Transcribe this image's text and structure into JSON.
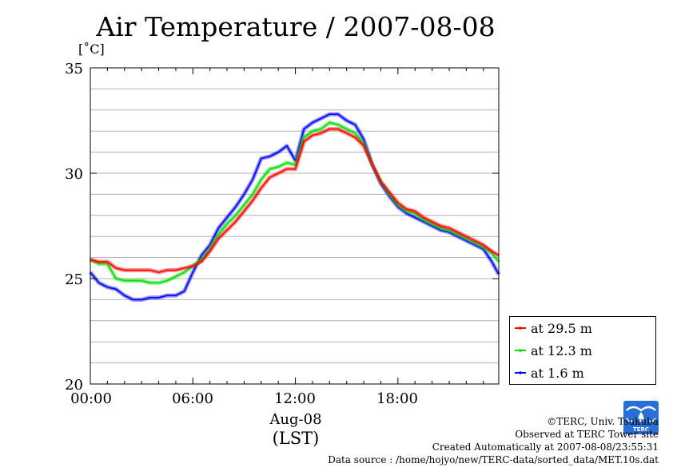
{
  "chart_data": {
    "type": "line",
    "title": "Air Temperature / 2007-08-08",
    "ylabel": "[˚C]",
    "xlabel": "(LST)",
    "x_date_label": "Aug-08",
    "x_tick_labels": [
      "00:00",
      "06:00",
      "12:00",
      "18:00"
    ],
    "x_tick_hours": [
      0,
      6,
      12,
      18
    ],
    "xlim_hours": [
      0,
      23.9
    ],
    "ylim": [
      20,
      35
    ],
    "y_tick_labels": [
      "20",
      "25",
      "30",
      "35"
    ],
    "y_tick_values": [
      20,
      25,
      30,
      35
    ],
    "grid_y_step": 1,
    "grid": true,
    "legend_position": "bottom-right outside",
    "x_hours": [
      0,
      0.5,
      1,
      1.5,
      2,
      2.5,
      3,
      3.5,
      4,
      4.5,
      5,
      5.5,
      6,
      6.5,
      7,
      7.5,
      8,
      8.5,
      9,
      9.5,
      10,
      10.5,
      11,
      11.5,
      12,
      12.5,
      13,
      13.5,
      14,
      14.5,
      15,
      15.5,
      16,
      16.5,
      17,
      17.5,
      18,
      18.5,
      19,
      19.5,
      20,
      20.5,
      21,
      21.5,
      22,
      22.5,
      23,
      23.5,
      23.9
    ],
    "series": [
      {
        "name": "at 29.5 m",
        "color": "#ff0000",
        "values": [
          25.9,
          25.8,
          25.8,
          25.5,
          25.4,
          25.4,
          25.4,
          25.4,
          25.3,
          25.4,
          25.4,
          25.5,
          25.6,
          25.8,
          26.3,
          26.9,
          27.3,
          27.7,
          28.2,
          28.7,
          29.3,
          29.8,
          30.0,
          30.2,
          30.2,
          31.5,
          31.8,
          31.9,
          32.1,
          32.1,
          31.9,
          31.7,
          31.3,
          30.4,
          29.6,
          29.1,
          28.6,
          28.3,
          28.2,
          27.9,
          27.7,
          27.5,
          27.4,
          27.2,
          27.0,
          26.8,
          26.6,
          26.3,
          26.1
        ]
      },
      {
        "name": "at 12.3 m",
        "color": "#00dd00",
        "values": [
          25.9,
          25.7,
          25.7,
          25.0,
          24.9,
          24.9,
          24.9,
          24.8,
          24.8,
          24.9,
          25.1,
          25.3,
          25.6,
          25.9,
          26.4,
          27.1,
          27.6,
          28.0,
          28.5,
          29.0,
          29.7,
          30.2,
          30.3,
          30.5,
          30.4,
          31.7,
          32.0,
          32.1,
          32.4,
          32.3,
          32.1,
          31.9,
          31.4,
          30.4,
          29.6,
          29.0,
          28.5,
          28.2,
          28.1,
          27.8,
          27.6,
          27.4,
          27.3,
          27.1,
          26.9,
          26.7,
          26.5,
          26.2,
          25.8
        ]
      },
      {
        "name": "at 1.6 m",
        "color": "#0000ff",
        "values": [
          25.3,
          24.8,
          24.6,
          24.5,
          24.2,
          24.0,
          24.0,
          24.1,
          24.1,
          24.2,
          24.2,
          24.4,
          25.3,
          26.1,
          26.6,
          27.4,
          27.9,
          28.4,
          29.0,
          29.7,
          30.7,
          30.8,
          31.0,
          31.3,
          30.6,
          32.1,
          32.4,
          32.6,
          32.8,
          32.8,
          32.5,
          32.3,
          31.6,
          30.4,
          29.5,
          28.9,
          28.4,
          28.1,
          27.9,
          27.7,
          27.5,
          27.3,
          27.2,
          27.0,
          26.8,
          26.6,
          26.4,
          25.8,
          25.2
        ]
      }
    ]
  },
  "credits": {
    "copyright": "©TERC, Univ. Tsukuba",
    "site": "Observed at TERC Tower site",
    "created": "Created Automatically at 2007-08-08/23:55:31",
    "source": "Data source : /home/hojyo/new/TERC-data/sorted_data/MET.10s.dat"
  },
  "logo": {
    "text": "TERC",
    "color": "#2a6fd6"
  }
}
